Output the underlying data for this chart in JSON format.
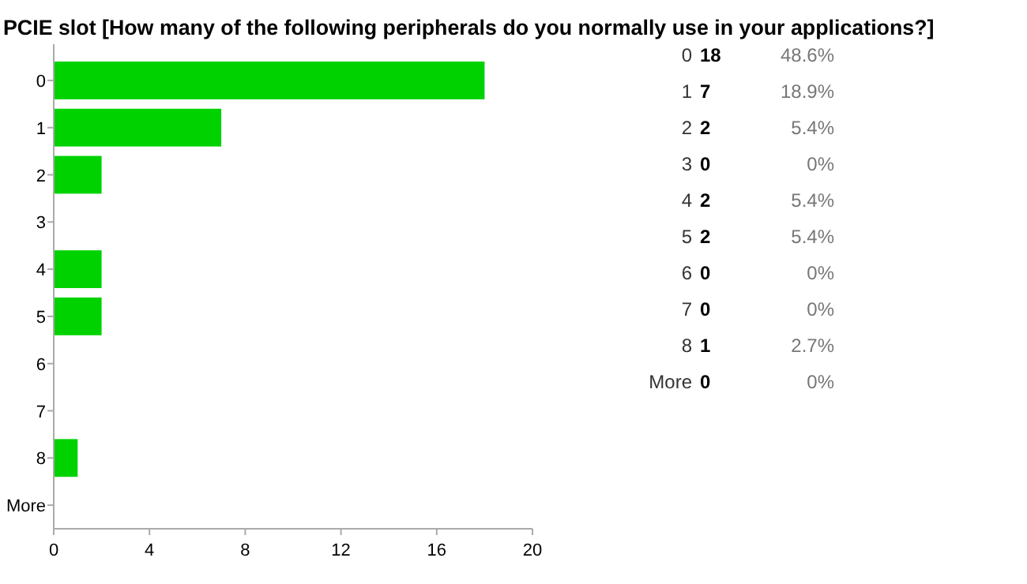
{
  "chart_data": [
    {
      "type": "bar",
      "orientation": "horizontal",
      "title": "PCIE slot [How many of the following peripherals do you normally use in your applications?]",
      "categories": [
        "0",
        "1",
        "2",
        "3",
        "4",
        "5",
        "6",
        "7",
        "8",
        "More"
      ],
      "values": [
        18,
        7,
        2,
        0,
        2,
        2,
        0,
        0,
        1,
        0
      ],
      "color": "#00d200",
      "xlim": [
        0,
        20
      ],
      "xticks": [
        0,
        4,
        8,
        12,
        16,
        20
      ]
    },
    {
      "type": "other",
      "categories": [
        "0",
        "1",
        "2",
        "3",
        "4",
        "5",
        "6",
        "7",
        "8",
        "More"
      ],
      "values": [
        18,
        7,
        2,
        0,
        2,
        2,
        0,
        0,
        1,
        0
      ],
      "data_labels": true,
      "annotations": [
        "48.6%",
        "18.9%",
        "5.4%",
        "0%",
        "5.4%",
        "5.4%",
        "0%",
        "0%",
        "2.7%",
        "0%"
      ]
    }
  ]
}
